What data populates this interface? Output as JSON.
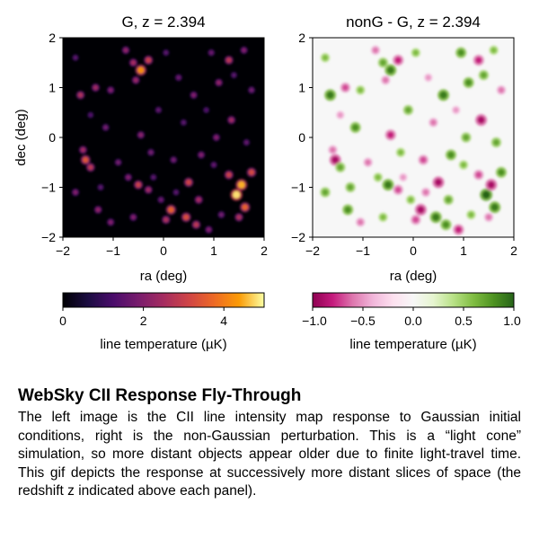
{
  "chart_data": [
    {
      "type": "heatmap",
      "title": "G, z = 2.394",
      "xlabel": "ra (deg)",
      "ylabel": "dec (deg)",
      "xlim": [
        -2,
        2
      ],
      "ylim": [
        -2,
        2
      ],
      "xticks": [
        "−2",
        "−1",
        "0",
        "1",
        "2"
      ],
      "yticks": [
        "−2",
        "−1",
        "0",
        "1",
        "2"
      ],
      "colormap": "inferno",
      "background": "#000004",
      "colorbar": {
        "label": "line temperature (µK)",
        "ticks": [
          "0",
          "2",
          "4"
        ],
        "range": [
          0,
          5
        ]
      },
      "sources": [
        {
          "x": 1.45,
          "y": -1.15,
          "v": 4.8
        },
        {
          "x": 1.55,
          "y": -0.95,
          "v": 4.5
        },
        {
          "x": 1.62,
          "y": -1.4,
          "v": 3.6
        },
        {
          "x": 1.3,
          "y": -0.75,
          "v": 3.0
        },
        {
          "x": 1.75,
          "y": -0.7,
          "v": 3.2
        },
        {
          "x": 1.5,
          "y": -1.6,
          "v": 2.6
        },
        {
          "x": -0.45,
          "y": 1.35,
          "v": 4.2
        },
        {
          "x": -0.3,
          "y": 1.55,
          "v": 3.0
        },
        {
          "x": -0.6,
          "y": 1.5,
          "v": 2.5
        },
        {
          "x": -0.55,
          "y": 1.15,
          "v": 2.3
        },
        {
          "x": 0.15,
          "y": -1.45,
          "v": 3.6
        },
        {
          "x": 0.45,
          "y": -1.6,
          "v": 3.3
        },
        {
          "x": 0.05,
          "y": -1.65,
          "v": 2.6
        },
        {
          "x": 0.65,
          "y": -1.75,
          "v": 2.8
        },
        {
          "x": -1.55,
          "y": -0.45,
          "v": 3.4
        },
        {
          "x": -1.45,
          "y": -0.6,
          "v": 2.8
        },
        {
          "x": -1.6,
          "y": -0.25,
          "v": 2.4
        },
        {
          "x": -0.5,
          "y": -0.95,
          "v": 3.0
        },
        {
          "x": -0.3,
          "y": -1.05,
          "v": 2.4
        },
        {
          "x": -0.7,
          "y": -0.8,
          "v": 2.0
        },
        {
          "x": 0.5,
          "y": -0.9,
          "v": 3.1
        },
        {
          "x": 0.7,
          "y": -1.25,
          "v": 2.5
        },
        {
          "x": -1.3,
          "y": -1.45,
          "v": 2.2
        },
        {
          "x": -1.05,
          "y": -1.7,
          "v": 2.0
        },
        {
          "x": -0.6,
          "y": -1.6,
          "v": 2.0
        },
        {
          "x": 1.3,
          "y": 1.55,
          "v": 2.8
        },
        {
          "x": 1.1,
          "y": 1.1,
          "v": 2.2
        },
        {
          "x": 1.6,
          "y": 1.75,
          "v": 2.0
        },
        {
          "x": -1.65,
          "y": 0.85,
          "v": 2.6
        },
        {
          "x": -1.35,
          "y": 1.0,
          "v": 2.4
        },
        {
          "x": -1.05,
          "y": 0.95,
          "v": 2.0
        },
        {
          "x": -0.75,
          "y": 1.75,
          "v": 2.2
        },
        {
          "x": 0.6,
          "y": 0.85,
          "v": 2.0
        },
        {
          "x": 0.3,
          "y": 1.2,
          "v": 1.7
        },
        {
          "x": 1.35,
          "y": 0.35,
          "v": 2.4
        },
        {
          "x": 1.05,
          "y": 0.0,
          "v": 2.0
        },
        {
          "x": -1.15,
          "y": 0.2,
          "v": 1.8
        },
        {
          "x": -0.45,
          "y": 0.05,
          "v": 2.1
        },
        {
          "x": -0.25,
          "y": -0.3,
          "v": 1.8
        },
        {
          "x": 0.2,
          "y": -0.45,
          "v": 1.8
        },
        {
          "x": 0.75,
          "y": -0.35,
          "v": 2.0
        },
        {
          "x": -0.9,
          "y": -0.5,
          "v": 1.8
        },
        {
          "x": 1.0,
          "y": -0.55,
          "v": 1.6
        },
        {
          "x": -1.75,
          "y": -1.1,
          "v": 2.0
        },
        {
          "x": 1.75,
          "y": 0.95,
          "v": 1.8
        },
        {
          "x": 0.95,
          "y": 1.7,
          "v": 1.7
        },
        {
          "x": -0.1,
          "y": 0.55,
          "v": 1.6
        },
        {
          "x": 0.4,
          "y": 0.3,
          "v": 1.5
        },
        {
          "x": -1.75,
          "y": 1.6,
          "v": 1.5
        },
        {
          "x": 0.9,
          "y": -1.85,
          "v": 2.0
        },
        {
          "x": 1.15,
          "y": -1.55,
          "v": 1.8
        },
        {
          "x": -0.2,
          "y": -0.8,
          "v": 1.5
        },
        {
          "x": 0.05,
          "y": 1.7,
          "v": 1.5
        },
        {
          "x": -1.45,
          "y": 0.45,
          "v": 1.4
        },
        {
          "x": 1.65,
          "y": -0.1,
          "v": 1.6
        },
        {
          "x": -0.05,
          "y": -1.25,
          "v": 1.7
        },
        {
          "x": 0.25,
          "y": -1.1,
          "v": 1.5
        },
        {
          "x": -1.25,
          "y": -1.0,
          "v": 1.5
        },
        {
          "x": 0.85,
          "y": 0.55,
          "v": 1.4
        },
        {
          "x": 1.4,
          "y": 1.25,
          "v": 1.5
        }
      ]
    },
    {
      "type": "heatmap",
      "title": "nonG - G, z = 2.394",
      "xlabel": "ra (deg)",
      "xlim": [
        -2,
        2
      ],
      "ylim": [
        -2,
        2
      ],
      "xticks": [
        "−2",
        "−1",
        "0",
        "1",
        "2"
      ],
      "yticks": [
        "−2",
        "−1",
        "0",
        "1",
        "2"
      ],
      "colormap": "PiYG",
      "background": "#f7f7f7",
      "colorbar": {
        "label": "line temperature (µK)",
        "ticks": [
          "−1.0",
          "−0.5",
          "0.0",
          "0.5",
          "1.0"
        ],
        "range": [
          -1,
          1
        ]
      },
      "sources": [
        {
          "x": 1.45,
          "y": -1.15,
          "v": 1.0
        },
        {
          "x": 1.55,
          "y": -0.95,
          "v": -0.9
        },
        {
          "x": 1.62,
          "y": -1.4,
          "v": 0.9
        },
        {
          "x": 1.3,
          "y": -0.75,
          "v": -0.7
        },
        {
          "x": 1.75,
          "y": -0.7,
          "v": 0.8
        },
        {
          "x": 1.5,
          "y": -1.6,
          "v": -0.6
        },
        {
          "x": -0.45,
          "y": 1.35,
          "v": 0.9
        },
        {
          "x": -0.3,
          "y": 1.55,
          "v": -0.8
        },
        {
          "x": -0.6,
          "y": 1.5,
          "v": 0.7
        },
        {
          "x": -0.55,
          "y": 1.15,
          "v": -0.6
        },
        {
          "x": 0.15,
          "y": -1.45,
          "v": -0.9
        },
        {
          "x": 0.45,
          "y": -1.6,
          "v": 0.9
        },
        {
          "x": 0.05,
          "y": -1.65,
          "v": -0.7
        },
        {
          "x": 0.65,
          "y": -1.75,
          "v": 0.8
        },
        {
          "x": -1.55,
          "y": -0.45,
          "v": -0.9
        },
        {
          "x": -1.45,
          "y": -0.6,
          "v": 0.7
        },
        {
          "x": -1.6,
          "y": -0.25,
          "v": -0.6
        },
        {
          "x": -0.5,
          "y": -0.95,
          "v": 0.9
        },
        {
          "x": -0.3,
          "y": -1.05,
          "v": -0.7
        },
        {
          "x": -0.7,
          "y": -0.8,
          "v": 0.6
        },
        {
          "x": 0.5,
          "y": -0.9,
          "v": -0.9
        },
        {
          "x": 0.7,
          "y": -1.25,
          "v": 0.7
        },
        {
          "x": -1.3,
          "y": -1.45,
          "v": 0.8
        },
        {
          "x": -1.05,
          "y": -1.7,
          "v": -0.6
        },
        {
          "x": -0.6,
          "y": -1.6,
          "v": 0.6
        },
        {
          "x": 1.3,
          "y": 1.55,
          "v": -0.8
        },
        {
          "x": 1.1,
          "y": 1.1,
          "v": 0.8
        },
        {
          "x": 1.6,
          "y": 1.75,
          "v": 0.6
        },
        {
          "x": -1.65,
          "y": 0.85,
          "v": 0.9
        },
        {
          "x": -1.35,
          "y": 1.0,
          "v": -0.7
        },
        {
          "x": -1.05,
          "y": 0.95,
          "v": 0.6
        },
        {
          "x": -0.75,
          "y": 1.75,
          "v": -0.6
        },
        {
          "x": 0.6,
          "y": 0.85,
          "v": 0.9
        },
        {
          "x": 0.3,
          "y": 1.2,
          "v": -0.5
        },
        {
          "x": 1.35,
          "y": 0.35,
          "v": -0.9
        },
        {
          "x": 1.05,
          "y": 0.0,
          "v": 0.7
        },
        {
          "x": -1.15,
          "y": 0.2,
          "v": 0.8
        },
        {
          "x": -0.45,
          "y": 0.05,
          "v": -0.8
        },
        {
          "x": -0.25,
          "y": -0.3,
          "v": 0.6
        },
        {
          "x": 0.2,
          "y": -0.45,
          "v": -0.7
        },
        {
          "x": 0.75,
          "y": -0.35,
          "v": 0.8
        },
        {
          "x": -0.9,
          "y": -0.5,
          "v": -0.6
        },
        {
          "x": 1.0,
          "y": -0.55,
          "v": 0.6
        },
        {
          "x": -1.75,
          "y": -1.1,
          "v": 0.7
        },
        {
          "x": 1.75,
          "y": 0.95,
          "v": -0.6
        },
        {
          "x": 0.95,
          "y": 1.7,
          "v": 0.8
        },
        {
          "x": -0.1,
          "y": 0.55,
          "v": 0.7
        },
        {
          "x": 0.4,
          "y": 0.3,
          "v": -0.6
        },
        {
          "x": -1.75,
          "y": 1.6,
          "v": 0.6
        },
        {
          "x": 0.9,
          "y": -1.85,
          "v": -0.8
        },
        {
          "x": 1.15,
          "y": -1.55,
          "v": 0.6
        },
        {
          "x": -0.2,
          "y": -0.8,
          "v": -0.5
        },
        {
          "x": 0.05,
          "y": 1.7,
          "v": 0.6
        },
        {
          "x": -1.45,
          "y": 0.45,
          "v": -0.5
        },
        {
          "x": 1.65,
          "y": -0.1,
          "v": 0.7
        },
        {
          "x": -0.05,
          "y": -1.25,
          "v": 0.6
        },
        {
          "x": 0.25,
          "y": -1.1,
          "v": -0.6
        },
        {
          "x": -1.25,
          "y": -1.0,
          "v": 0.7
        },
        {
          "x": 0.85,
          "y": 0.55,
          "v": -0.5
        },
        {
          "x": 1.4,
          "y": 1.25,
          "v": 0.7
        }
      ]
    }
  ],
  "caption": {
    "heading": "WebSky CII Response Fly-Through",
    "body": "The left image is the CII line intensity map response to Gaussian initial conditions, right is the non-Gaussian perturbation. This is a “light cone” simulation, so more distant objects appear older due to finite light-travel time. This gif depicts the response at successively more distant slices of space (the redshift z indicated above each panel)."
  }
}
